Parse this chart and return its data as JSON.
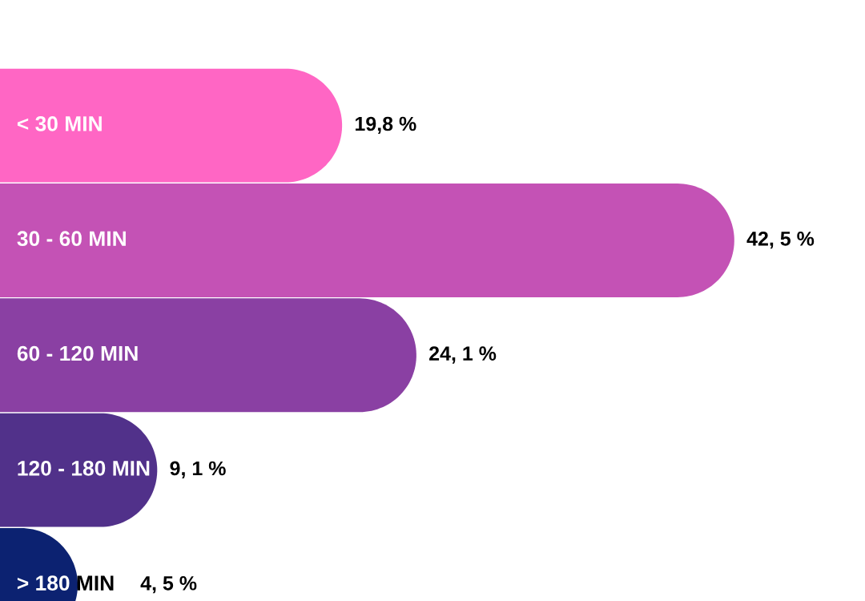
{
  "chart_data": {
    "type": "bar",
    "orientation": "horizontal",
    "categories": [
      "< 30 MIN",
      "30 - 60 MIN",
      "60 - 120 MIN",
      "120 - 180 MIN",
      "> 180 MIN"
    ],
    "values": [
      19.8,
      42.5,
      24.1,
      9.1,
      4.5
    ],
    "colors": [
      "#ff66c4",
      "#c452b5",
      "#8a40a3",
      "#51318a",
      "#0c2271"
    ],
    "value_labels": [
      "19,8 %",
      "42, 5 %",
      "24, 1 %",
      "9, 1 %",
      "4, 5 %"
    ]
  }
}
